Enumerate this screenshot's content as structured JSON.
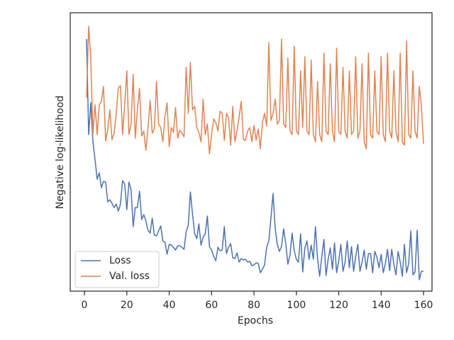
{
  "chart_data": {
    "type": "line",
    "x_label": "Epochs",
    "y_label": "Negative log-likelihood",
    "x": [
      1,
      2,
      3,
      4,
      5,
      6,
      7,
      8,
      9,
      10,
      11,
      12,
      13,
      14,
      15,
      16,
      17,
      18,
      19,
      20,
      21,
      22,
      23,
      24,
      25,
      26,
      27,
      28,
      29,
      30,
      31,
      32,
      33,
      34,
      35,
      36,
      37,
      38,
      39,
      40,
      41,
      42,
      43,
      44,
      45,
      46,
      47,
      48,
      49,
      50,
      51,
      52,
      53,
      54,
      55,
      56,
      57,
      58,
      59,
      60,
      61,
      62,
      63,
      64,
      65,
      66,
      67,
      68,
      69,
      70,
      71,
      72,
      73,
      74,
      75,
      76,
      77,
      78,
      79,
      80,
      81,
      82,
      83,
      84,
      85,
      86,
      87,
      88,
      89,
      90,
      91,
      92,
      93,
      94,
      95,
      96,
      97,
      98,
      99,
      100,
      101,
      102,
      103,
      104,
      105,
      106,
      107,
      108,
      109,
      110,
      111,
      112,
      113,
      114,
      115,
      116,
      117,
      118,
      119,
      120,
      121,
      122,
      123,
      124,
      125,
      126,
      127,
      128,
      129,
      130,
      131,
      132,
      133,
      134,
      135,
      136,
      137,
      138,
      139,
      140,
      141,
      142,
      143,
      144,
      145,
      146,
      147,
      148,
      149,
      150,
      151,
      152,
      153,
      154,
      155,
      156,
      157,
      158,
      159,
      160
    ],
    "series": [
      {
        "name": "Loss",
        "color": "#4c72b0",
        "values": [
          356,
          221,
          266,
          211,
          186,
          158,
          167,
          146,
          155,
          154,
          126,
          129,
          124,
          118,
          123,
          113,
          123,
          156,
          151,
          115,
          154,
          143,
          91,
          118,
          118,
          141,
          101,
          108,
          99,
          86,
          82,
          103,
          79,
          78,
          85,
          92,
          71,
          69,
          52,
          66,
          65,
          62,
          58,
          64,
          64,
          62,
          59,
          84,
          93,
          140,
          109,
          81,
          74,
          95,
          65,
          76,
          81,
          106,
          63,
          58,
          49,
          43,
          62,
          57,
          58,
          91,
          53,
          62,
          67,
          47,
          46,
          54,
          41,
          46,
          44,
          45,
          41,
          42,
          36,
          37,
          40,
          39,
          26,
          31,
          37,
          62,
          71,
          103,
          138,
          89,
          66,
          56,
          63,
          88,
          67,
          38,
          51,
          82,
          57,
          45,
          41,
          81,
          27,
          61,
          71,
          45,
          65,
          45,
          91,
          46,
          21,
          49,
          73,
          22,
          45,
          61,
          31,
          68,
          26,
          43,
          66,
          28,
          41,
          71,
          33,
          63,
          28,
          49,
          66,
          28,
          41,
          58,
          31,
          53,
          53,
          26,
          56,
          48,
          33,
          52,
          26,
          39,
          59,
          29,
          59,
          38,
          23,
          56,
          41,
          21,
          66,
          26,
          39,
          85,
          23,
          27,
          86,
          16,
          28,
          28
        ]
      },
      {
        "name": "Val. loss",
        "color": "#dd8452",
        "values": [
          273,
          374,
          329,
          221,
          263,
          221,
          263,
          268,
          289,
          212,
          228,
          256,
          214,
          223,
          251,
          287,
          290,
          221,
          263,
          311,
          221,
          236,
          306,
          216,
          256,
          286,
          219,
          226,
          199,
          231,
          269,
          223,
          229,
          296,
          236,
          231,
          211,
          246,
          266,
          204,
          231,
          224,
          259,
          216,
          227,
          223,
          218,
          316,
          251,
          323,
          256,
          261,
          231,
          224,
          211,
          271,
          221,
          236,
          194,
          221,
          243,
          238,
          226,
          254,
          251,
          213,
          251,
          245,
          206,
          261,
          211,
          226,
          246,
          268,
          214,
          213,
          226,
          231,
          211,
          234,
          213,
          229,
          201,
          238,
          251,
          233,
          351,
          241,
          251,
          271,
          236,
          241,
          356,
          236,
          231,
          329,
          226,
          221,
          346,
          226,
          221,
          311,
          231,
          331,
          226,
          221,
          326,
          221,
          211,
          296,
          221,
          211,
          336,
          226,
          221,
          321,
          226,
          211,
          343,
          226,
          221,
          316,
          226,
          216,
          311,
          221,
          226,
          331,
          216,
          226,
          321,
          211,
          201,
          336,
          221,
          216,
          311,
          226,
          221,
          331,
          221,
          211,
          336,
          226,
          216,
          311,
          226,
          211,
          336,
          211,
          206,
          353,
          221,
          216,
          311,
          226,
          216,
          289,
          261,
          208
        ]
      }
    ],
    "xlim": [
      -6.7,
      164
    ],
    "xticks": [
      0,
      20,
      40,
      60,
      80,
      100,
      120,
      140,
      160
    ],
    "ylim": [
      0,
      393
    ],
    "legend": "lower left"
  }
}
